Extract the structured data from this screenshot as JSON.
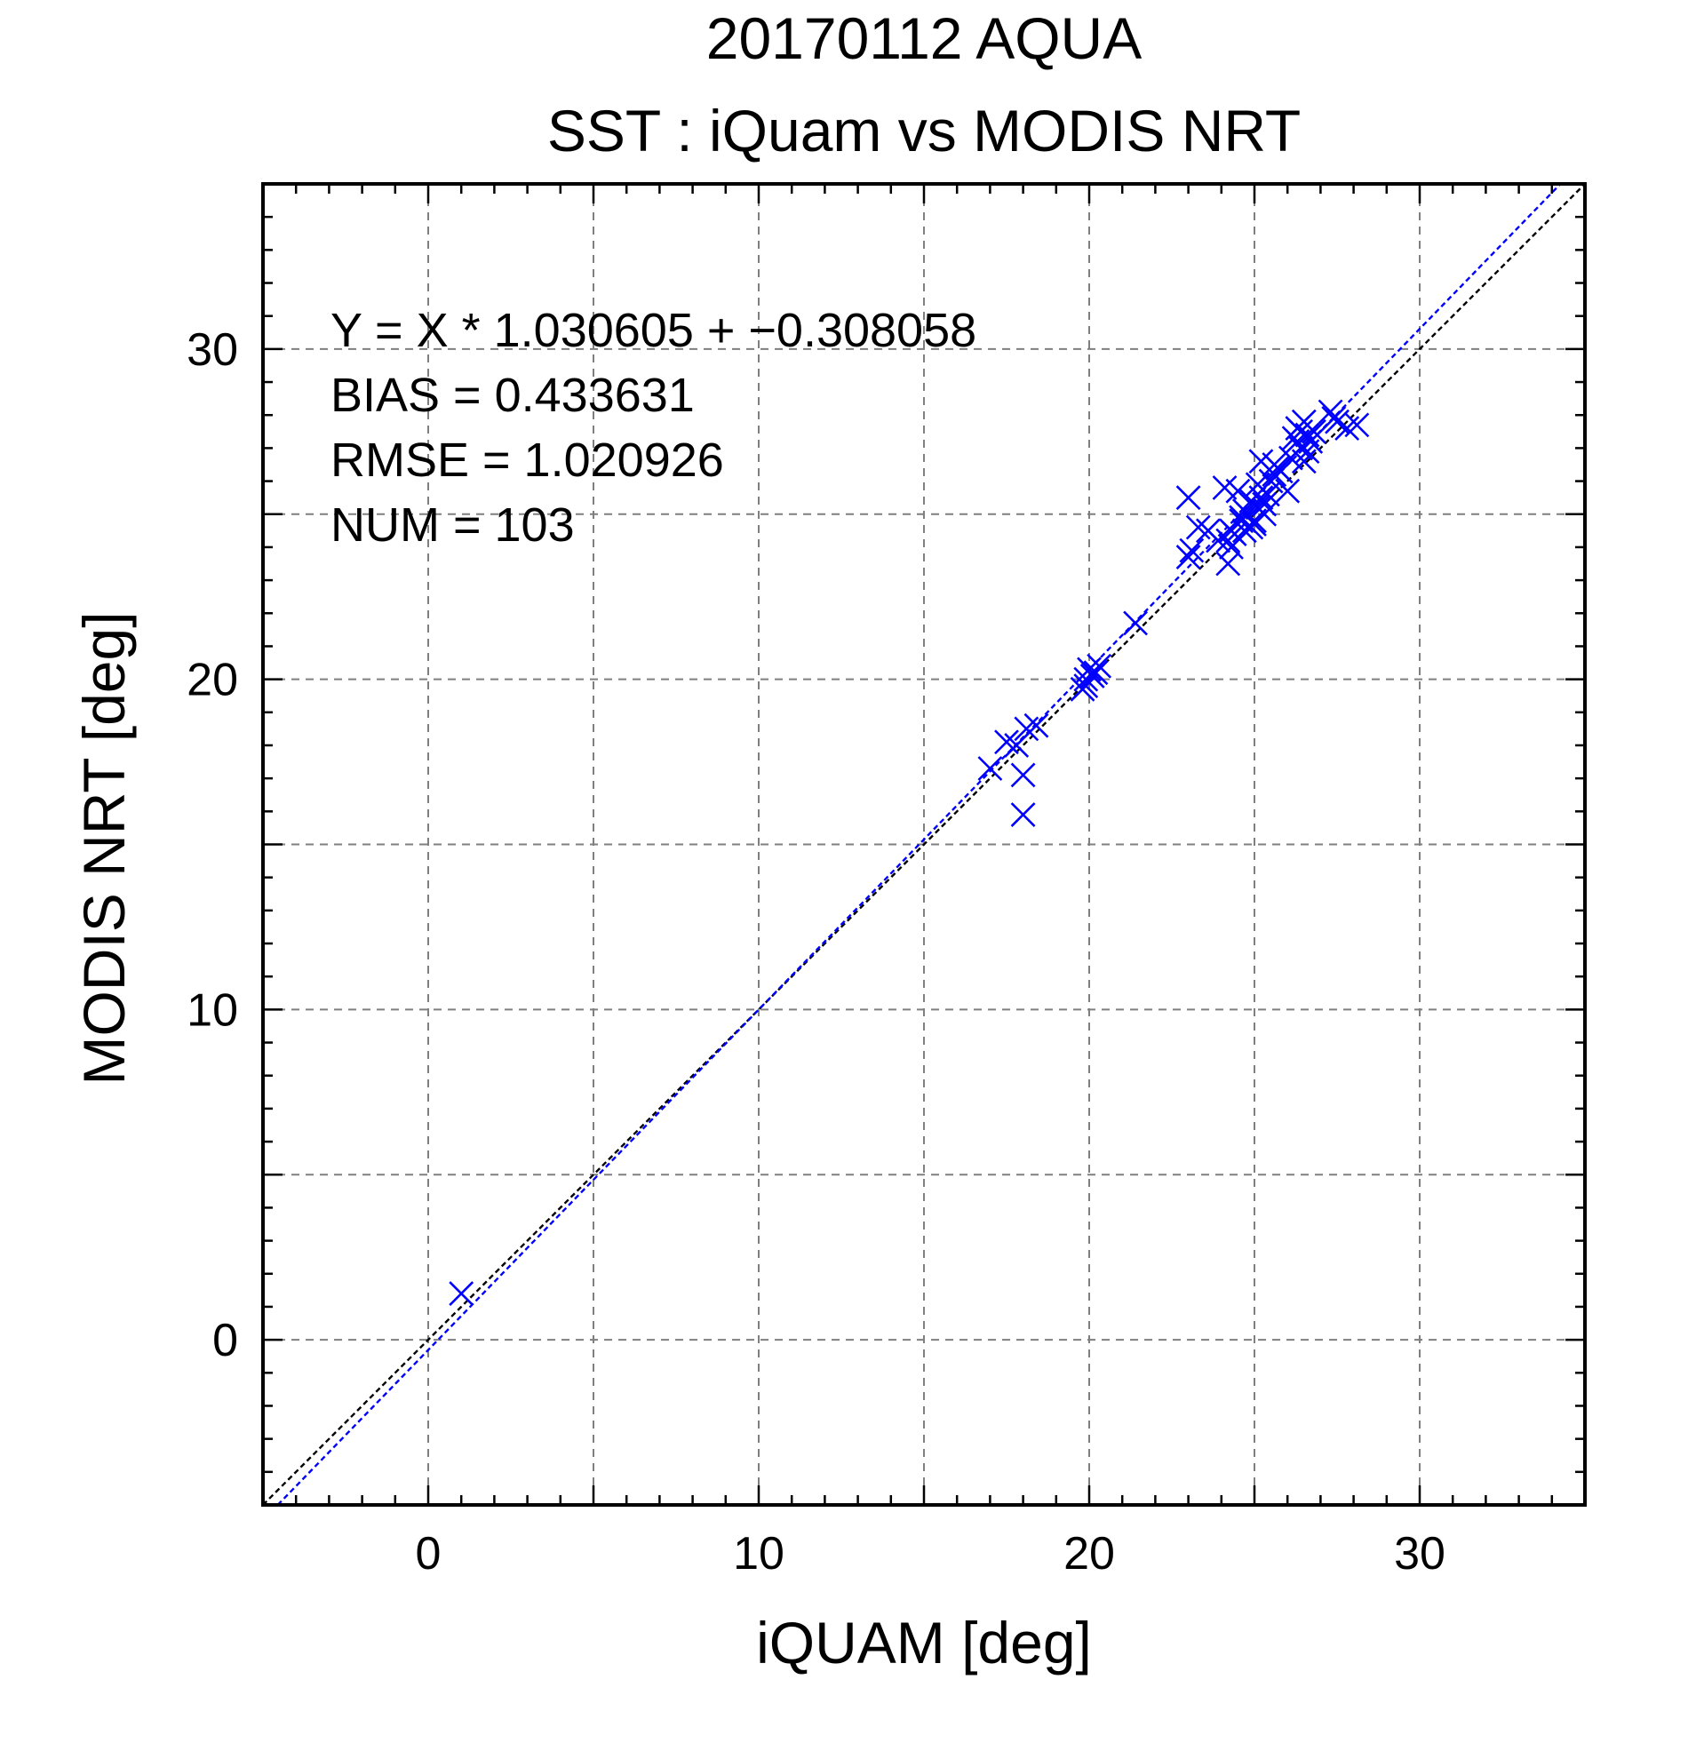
{
  "chart_data": {
    "type": "scatter",
    "title": "20170112 AQUA",
    "subtitle": "SST : iQuam vs MODIS NRT",
    "xlabel": "iQUAM [deg]",
    "ylabel": "MODIS NRT [deg]",
    "xlim": [
      -5,
      35
    ],
    "ylim": [
      -5,
      35
    ],
    "xticks": [
      0,
      10,
      20,
      30
    ],
    "yticks": [
      0,
      10,
      20,
      30
    ],
    "grid": true,
    "stats": [
      "Y = X * 1.030605 + −0.308058",
      "BIAS = 0.433631",
      "RMSE = 1.020926",
      "NUM = 103"
    ],
    "fit_line": {
      "slope": 1.030605,
      "intercept": -0.308058,
      "color": "#0000ff"
    },
    "identity_line": {
      "slope": 1,
      "intercept": 0,
      "color": "#000000"
    },
    "marker_color": "#0000ff",
    "points": [
      [
        1.0,
        1.4
      ],
      [
        17.0,
        17.3
      ],
      [
        17.5,
        18.1
      ],
      [
        17.8,
        18.0
      ],
      [
        18.1,
        18.5
      ],
      [
        18.4,
        18.6
      ],
      [
        18.0,
        17.1
      ],
      [
        18.0,
        15.9
      ],
      [
        19.8,
        19.7
      ],
      [
        19.9,
        20.0
      ],
      [
        20.0,
        20.3
      ],
      [
        20.2,
        20.2
      ],
      [
        20.3,
        20.4
      ],
      [
        19.9,
        19.8
      ],
      [
        20.1,
        20.1
      ],
      [
        21.4,
        21.7
      ],
      [
        23.0,
        25.5
      ],
      [
        23.0,
        23.7
      ],
      [
        23.1,
        23.9
      ],
      [
        23.3,
        24.6
      ],
      [
        23.6,
        24.5
      ],
      [
        23.9,
        24.2
      ],
      [
        24.1,
        25.8
      ],
      [
        24.2,
        23.5
      ],
      [
        24.2,
        24.2
      ],
      [
        24.3,
        24.0
      ],
      [
        24.4,
        24.4
      ],
      [
        24.5,
        25.7
      ],
      [
        24.6,
        24.8
      ],
      [
        24.7,
        24.5
      ],
      [
        24.8,
        25.0
      ],
      [
        24.9,
        25.4
      ],
      [
        25.0,
        24.8
      ],
      [
        25.0,
        24.7
      ],
      [
        25.1,
        25.2
      ],
      [
        25.2,
        25.5
      ],
      [
        25.2,
        26.6
      ],
      [
        25.3,
        25.0
      ],
      [
        25.4,
        25.6
      ],
      [
        25.5,
        26.0
      ],
      [
        25.6,
        26.2
      ],
      [
        25.7,
        26.4
      ],
      [
        25.8,
        26.3
      ],
      [
        24.6,
        24.9
      ],
      [
        24.9,
        24.6
      ],
      [
        25.1,
        25.9
      ],
      [
        24.3,
        24.5
      ],
      [
        24.7,
        25.1
      ],
      [
        25.3,
        25.3
      ],
      [
        25.6,
        26.5
      ],
      [
        26.0,
        25.7
      ],
      [
        26.1,
        26.7
      ],
      [
        26.2,
        27.3
      ],
      [
        26.3,
        27.6
      ],
      [
        26.4,
        27.0
      ],
      [
        26.5,
        26.6
      ],
      [
        26.6,
        27.4
      ],
      [
        26.7,
        27.2
      ],
      [
        26.5,
        27.8
      ],
      [
        26.8,
        27.5
      ],
      [
        26.3,
        27.2
      ],
      [
        26.6,
        26.9
      ],
      [
        27.3,
        28.1
      ],
      [
        27.5,
        27.8
      ],
      [
        27.8,
        27.6
      ],
      [
        28.1,
        27.7
      ],
      [
        27.4,
        27.9
      ],
      [
        26.4,
        27.5
      ]
    ]
  }
}
